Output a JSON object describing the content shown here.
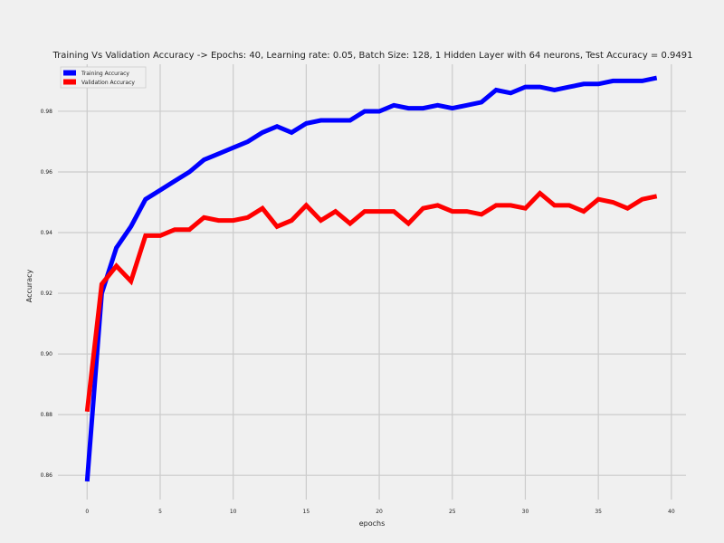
{
  "chart_data": {
    "type": "line",
    "title": "Training Vs Validation Accuracy -> Epochs: 40, Learning rate: 0.05, Batch Size: 128, 1 Hidden Layer with 64 neurons, Test Accuracy = 0.9491",
    "xlabel": "epochs",
    "ylabel": "Accuracy",
    "xlim": [
      -2,
      41
    ],
    "ylim": [
      0.852,
      0.9955
    ],
    "xticks": [
      0,
      5,
      10,
      15,
      20,
      25,
      30,
      35,
      40
    ],
    "xtick_labels": [
      "0",
      "5",
      "10",
      "15",
      "20",
      "25",
      "30",
      "35",
      "40"
    ],
    "yticks": [
      0.86,
      0.88,
      0.9,
      0.92,
      0.94,
      0.96,
      0.98
    ],
    "ytick_labels": [
      "0.86",
      "0.88",
      "0.90",
      "0.92",
      "0.94",
      "0.96",
      "0.98"
    ],
    "grid": true,
    "legend_position": "top-left",
    "x": [
      0,
      1,
      2,
      3,
      4,
      5,
      6,
      7,
      8,
      9,
      10,
      11,
      12,
      13,
      14,
      15,
      16,
      17,
      18,
      19,
      20,
      21,
      22,
      23,
      24,
      25,
      26,
      27,
      28,
      29,
      30,
      31,
      32,
      33,
      34,
      35,
      36,
      37,
      38,
      39
    ],
    "series": [
      {
        "name": "Training Accuracy",
        "color": "#0000ff",
        "values": [
          0.858,
          0.92,
          0.935,
          0.942,
          0.951,
          0.954,
          0.957,
          0.96,
          0.964,
          0.966,
          0.968,
          0.97,
          0.973,
          0.975,
          0.973,
          0.976,
          0.977,
          0.977,
          0.977,
          0.98,
          0.98,
          0.982,
          0.981,
          0.981,
          0.982,
          0.981,
          0.982,
          0.983,
          0.987,
          0.986,
          0.988,
          0.988,
          0.987,
          0.988,
          0.989,
          0.989,
          0.99,
          0.99,
          0.99,
          0.991
        ]
      },
      {
        "name": "Validation Accuracy",
        "color": "#ff0000",
        "values": [
          0.881,
          0.923,
          0.929,
          0.924,
          0.939,
          0.939,
          0.941,
          0.941,
          0.945,
          0.944,
          0.944,
          0.945,
          0.948,
          0.942,
          0.944,
          0.949,
          0.944,
          0.947,
          0.943,
          0.947,
          0.947,
          0.947,
          0.943,
          0.948,
          0.949,
          0.947,
          0.947,
          0.946,
          0.949,
          0.949,
          0.948,
          0.953,
          0.949,
          0.949,
          0.947,
          0.951,
          0.95,
          0.948,
          0.951,
          0.952
        ]
      }
    ]
  }
}
